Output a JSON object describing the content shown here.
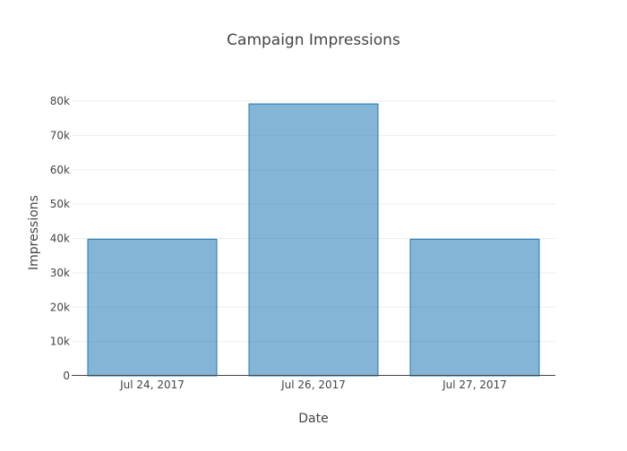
{
  "chart_data": {
    "type": "bar",
    "title": "Campaign Impressions",
    "xlabel": "Date",
    "ylabel": "Impressions",
    "categories": [
      "Jul 24, 2017",
      "Jul 26, 2017",
      "Jul 27, 2017"
    ],
    "values": [
      39800,
      79200,
      39800
    ],
    "ylim": [
      0,
      83400
    ],
    "yticks": [
      0,
      10000,
      20000,
      30000,
      40000,
      50000,
      60000,
      70000,
      80000
    ],
    "ytick_labels": [
      "0",
      "10k",
      "20k",
      "30k",
      "40k",
      "50k",
      "60k",
      "70k",
      "80k"
    ],
    "grid": true,
    "legend": "none",
    "colors": {
      "bar_fill": "#1f77b4",
      "bar_opacity": 0.55,
      "bar_line": "#1f77b4",
      "grid": "#eeeeee",
      "axis": "#444444"
    }
  }
}
